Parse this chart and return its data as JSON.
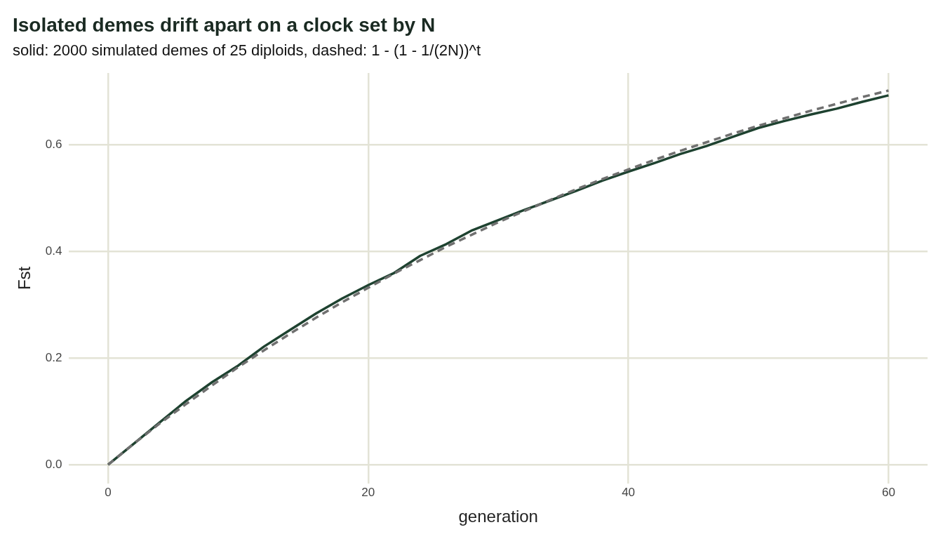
{
  "chart_data": {
    "type": "line",
    "title": "Isolated demes drift apart on a clock set by N",
    "subtitle": "solid: 2000 simulated demes of 25 diploids, dashed: 1 - (1 - 1/(2N))^t",
    "xlabel": "generation",
    "ylabel": "Fst",
    "x": [
      0,
      2,
      4,
      6,
      8,
      10,
      12,
      14,
      16,
      18,
      20,
      22,
      24,
      26,
      28,
      30,
      32,
      34,
      36,
      38,
      40,
      42,
      44,
      46,
      48,
      50,
      52,
      54,
      56,
      58,
      60
    ],
    "series": [
      {
        "color": "#707070",
        "line_style": "dashed",
        "values": [
          0,
          0.04,
          0.078,
          0.114,
          0.149,
          0.183,
          0.215,
          0.246,
          0.276,
          0.305,
          0.332,
          0.359,
          0.384,
          0.409,
          0.432,
          0.455,
          0.476,
          0.497,
          0.517,
          0.536,
          0.554,
          0.572,
          0.589,
          0.605,
          0.621,
          0.636,
          0.65,
          0.664,
          0.677,
          0.69,
          0.702
        ]
      },
      {
        "color": "#1e4230",
        "line_style": "solid",
        "values": [
          0,
          0.04,
          0.08,
          0.12,
          0.155,
          0.186,
          0.222,
          0.253,
          0.284,
          0.312,
          0.337,
          0.36,
          0.392,
          0.414,
          0.44,
          0.459,
          0.478,
          0.496,
          0.514,
          0.533,
          0.55,
          0.566,
          0.583,
          0.598,
          0.615,
          0.632,
          0.645,
          0.657,
          0.668,
          0.681,
          0.693
        ]
      }
    ],
    "xlim": [
      -3,
      63
    ],
    "xticks": [
      0,
      20,
      40,
      60
    ],
    "ylim": [
      -0.035,
      0.735
    ],
    "yticks": [
      {
        "value": 0,
        "label": "0.0"
      },
      {
        "value": 0.2,
        "label": "0.2"
      },
      {
        "value": 0.4,
        "label": "0.4"
      },
      {
        "value": 0.6,
        "label": "0.6"
      }
    ],
    "grid": true,
    "legend": false,
    "marker": "none"
  }
}
